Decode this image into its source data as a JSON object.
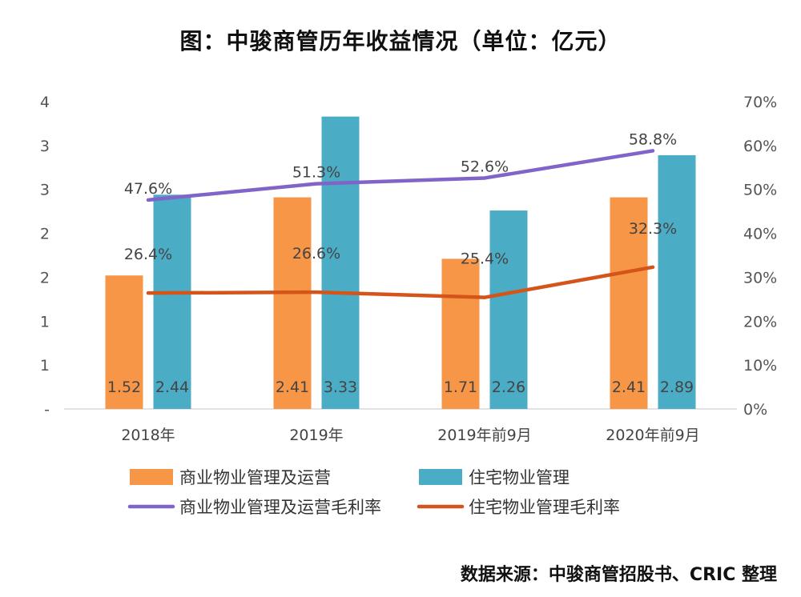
{
  "title": "图：中骏商管历年收益情况（单位：亿元）",
  "source": "数据来源：中骏商管招股书、CRIC 整理",
  "chart_data": {
    "type": "bar",
    "categories": [
      "2018年",
      "2019年",
      "2019年前9月",
      "2020年前9月"
    ],
    "series": [
      {
        "name": "商业物业管理及运营",
        "kind": "bar",
        "axis": "left",
        "color": "#F79646",
        "values": [
          1.52,
          2.41,
          1.71,
          2.41
        ],
        "labels": [
          "1.52",
          "2.41",
          "1.71",
          "2.41"
        ]
      },
      {
        "name": "住宅物业管理",
        "kind": "bar",
        "axis": "left",
        "color": "#4BACC6",
        "values": [
          2.44,
          3.33,
          2.26,
          2.89
        ],
        "labels": [
          "2.44",
          "3.33",
          "2.26",
          "2.89"
        ]
      },
      {
        "name": "商业物业管理及运营毛利率",
        "kind": "line",
        "axis": "right",
        "color": "#8064C8",
        "values": [
          47.6,
          51.3,
          52.6,
          58.8
        ],
        "labels": [
          "47.6%",
          "51.3%",
          "52.6%",
          "58.8%"
        ]
      },
      {
        "name": "住宅物业管理毛利率",
        "kind": "line",
        "axis": "right",
        "color": "#D4541A",
        "values": [
          26.4,
          26.6,
          25.4,
          32.3
        ],
        "labels": [
          "26.4%",
          "26.6%",
          "25.4%",
          "32.3%"
        ]
      }
    ],
    "left_axis": {
      "ylim": [
        0,
        3.5
      ],
      "tick_labels": [
        "-",
        "1",
        "1",
        "2",
        "2",
        "3",
        "3",
        "4"
      ]
    },
    "right_axis": {
      "ylim": [
        0,
        70
      ],
      "tick_labels": [
        "0%",
        "10%",
        "20%",
        "30%",
        "40%",
        "50%",
        "60%",
        "70%"
      ]
    },
    "legend": "bottom",
    "grid": false
  }
}
